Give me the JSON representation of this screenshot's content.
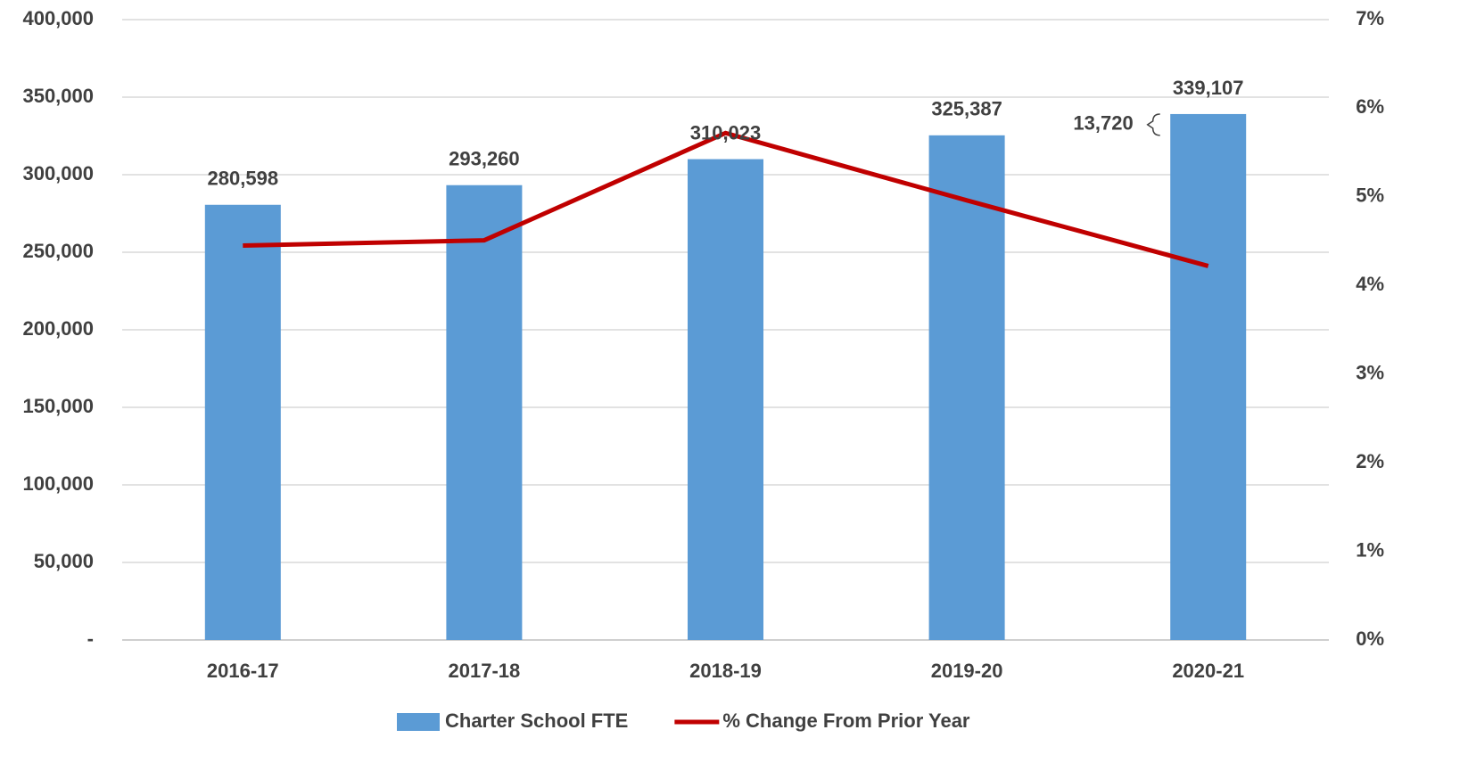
{
  "chart_data": {
    "type": "bar_line",
    "categories": [
      "2016-17",
      "2017-18",
      "2018-19",
      "2019-20",
      "2020-21"
    ],
    "series": [
      {
        "name": "Charter School FTE",
        "type": "bar",
        "color": "#5b9bd5",
        "values": [
          280598,
          293260,
          310023,
          325387,
          339107
        ],
        "value_labels": [
          "280,598",
          "293,260",
          "310,023",
          "325,387",
          "339,107"
        ]
      },
      {
        "name": "% Change From Prior Year",
        "type": "line",
        "axis": "y2",
        "color": "#c00000",
        "values": [
          4.45,
          4.51,
          5.72,
          4.96,
          4.22
        ]
      }
    ],
    "annotations": [
      {
        "text": "13,720",
        "category": 4
      }
    ],
    "ylim": [
      0,
      400000
    ],
    "yticks": [
      {
        "value": 0,
        "label": "-"
      },
      {
        "value": 50000,
        "label": "50,000"
      },
      {
        "value": 100000,
        "label": "100,000"
      },
      {
        "value": 150000,
        "label": "150,000"
      },
      {
        "value": 200000,
        "label": "200,000"
      },
      {
        "value": 250000,
        "label": "250,000"
      },
      {
        "value": 300000,
        "label": "300,000"
      },
      {
        "value": 350000,
        "label": "350,000"
      },
      {
        "value": 400000,
        "label": "400,000"
      }
    ],
    "y2lim": [
      0,
      7
    ],
    "y2ticks": [
      {
        "value": 0,
        "label": "0%"
      },
      {
        "value": 1,
        "label": "1%"
      },
      {
        "value": 2,
        "label": "2%"
      },
      {
        "value": 3,
        "label": "3%"
      },
      {
        "value": 4,
        "label": "4%"
      },
      {
        "value": 5,
        "label": "5%"
      },
      {
        "value": 6,
        "label": "6%"
      },
      {
        "value": 7,
        "label": "7%"
      }
    ],
    "grid": true,
    "legend": "bottom"
  }
}
